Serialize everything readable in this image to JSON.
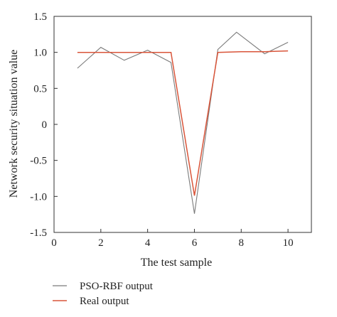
{
  "chart_data": {
    "type": "line",
    "xlabel": "The test sample",
    "ylabel": "Network security situation value",
    "xlim": [
      0,
      11
    ],
    "ylim": [
      -1.5,
      1.5
    ],
    "xticks": [
      "0",
      "2",
      "4",
      "6",
      "8",
      "10"
    ],
    "yticks": [
      "1.5",
      "1.0",
      "0.5",
      "0",
      "-0.5",
      "-1.0",
      "-1.5"
    ],
    "grid": false,
    "legend_position": "bottom-left, below the plot",
    "series": [
      {
        "name": "PSO-RBF output",
        "color": "#7a7a7a",
        "x": [
          1,
          2,
          3,
          4,
          5,
          6,
          7,
          7.8,
          9,
          10
        ],
        "y": [
          0.78,
          1.07,
          0.89,
          1.03,
          0.86,
          -1.24,
          1.04,
          1.28,
          0.98,
          1.14
        ]
      },
      {
        "name": "Real output",
        "color": "#d9553a",
        "x": [
          1,
          2,
          3,
          4,
          5,
          6,
          7,
          8,
          9,
          10
        ],
        "y": [
          1.0,
          1.0,
          1.0,
          1.0,
          1.0,
          -0.99,
          1.0,
          1.01,
          1.01,
          1.02
        ]
      }
    ]
  }
}
